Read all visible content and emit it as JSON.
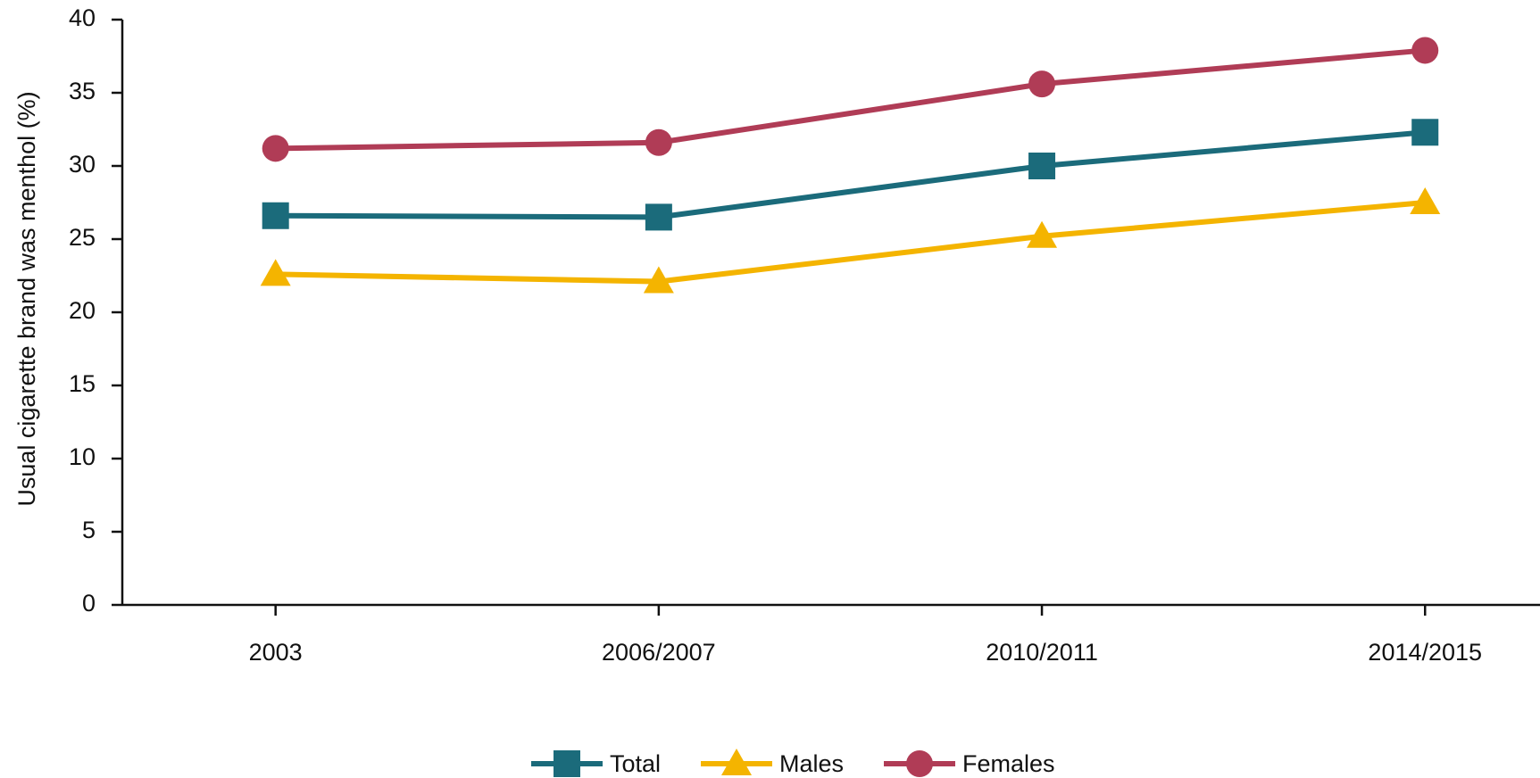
{
  "chart_data": {
    "type": "line",
    "y_label": "Usual cigarette brand was menthol (%)",
    "categories": [
      "2003",
      "2006/2007",
      "2010/2011",
      "2014/2015"
    ],
    "series": [
      {
        "name": "Total",
        "color": "#1b6b7b",
        "marker": "square",
        "values": [
          26.6,
          26.5,
          30.0,
          32.3
        ]
      },
      {
        "name": "Males",
        "color": "#f4b400",
        "marker": "triangle",
        "values": [
          22.6,
          22.1,
          25.2,
          27.5
        ]
      },
      {
        "name": "Females",
        "color": "#b03c56",
        "marker": "circle",
        "values": [
          31.2,
          31.6,
          35.6,
          37.9
        ]
      }
    ],
    "ylim": [
      0,
      40
    ],
    "yticks": [
      0,
      5,
      10,
      15,
      20,
      25,
      30,
      35,
      40
    ],
    "grid": false,
    "legend": "bottom"
  }
}
